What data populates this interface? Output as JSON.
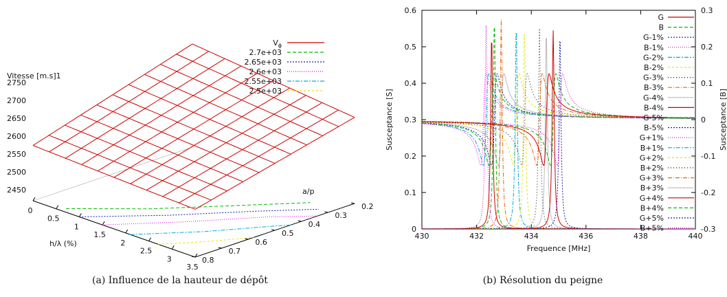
{
  "captions": {
    "a": "(a) Influence de la hauteur de dépôt",
    "b": "(b) Résolution du peigne"
  },
  "chart_data": [
    {
      "type": "surface3d",
      "ztitle": "Vitesse [m.s]1",
      "xlabel": "h/λ (%)",
      "ylabel": "a/p",
      "x_ticks": [
        "0",
        "0.5",
        "1",
        "1.5",
        "2",
        "2.5",
        "3",
        "3.5"
      ],
      "y_ticks": [
        "0.8",
        "0.7",
        "0.6",
        "0.5",
        "0.4",
        "0.3",
        "0.2"
      ],
      "z_ticks": [
        "2450",
        "2500",
        "2550",
        "2600",
        "2650",
        "2700",
        "2750"
      ],
      "xlim": [
        0,
        3.5
      ],
      "ylim": [
        0.8,
        0.2
      ],
      "zlim": [
        2450,
        2750
      ],
      "legend": [
        {
          "label": "V",
          "sub": "ϕ",
          "color": "#cc0000",
          "dash": ""
        },
        {
          "label": "2.7e+03",
          "color": "#00bb00",
          "dash": "5,3"
        },
        {
          "label": "2.65e+03",
          "color": "#1a1aaa",
          "dash": "2,2"
        },
        {
          "label": "2.6e+03",
          "color": "#dd00dd",
          "dash": "1,2"
        },
        {
          "label": "2.55e+03",
          "color": "#00aadd",
          "dash": "6,2,2,2"
        },
        {
          "label": "2.5e+03",
          "color": "#e6e600",
          "dash": "3,3"
        }
      ]
    },
    {
      "type": "line",
      "xlabel": "Frequence [MHz]",
      "ylabel": "Susceptance [S]",
      "y2label": "Susceptance [B]",
      "xlim": [
        430,
        440
      ],
      "ylim": [
        0,
        0.6
      ],
      "y2lim": [
        -0.3,
        0.3
      ],
      "x_ticks": [
        "430",
        "432",
        "434",
        "436",
        "438",
        "440"
      ],
      "y_ticks": [
        "0",
        "0.1",
        "0.2",
        "0.3",
        "0.4",
        "0.5",
        "0.6"
      ],
      "y2_ticks": [
        "-0.3",
        "-0.2",
        "-0.1",
        "0",
        "0.1",
        "0.2",
        "0.3"
      ],
      "peaks": [
        {
          "name": "G",
          "kind": "G",
          "f0": 434.8,
          "peak": 0.545,
          "color": "#cc0000",
          "dash": ""
        },
        {
          "name": "B",
          "kind": "B",
          "f0": 434.8,
          "peak": 0.5,
          "color": "#00bb00",
          "dash": "5,3"
        },
        {
          "name": "G-1%",
          "kind": "G",
          "f0": 435.05,
          "peak": 0.54,
          "color": "#1a1aaa",
          "dash": "2,2"
        },
        {
          "name": "B-1%",
          "kind": "B",
          "f0": 435.05,
          "peak": 0.5,
          "color": "#dd00dd",
          "dash": "1,2"
        },
        {
          "name": "G-2%",
          "kind": "G",
          "f0": 433.45,
          "peak": 0.565,
          "color": "#00aadd",
          "dash": "6,2,2,2"
        },
        {
          "name": "B-2%",
          "kind": "B",
          "f0": 433.45,
          "peak": 0.5,
          "color": "#e6e600",
          "dash": "3,3"
        },
        {
          "name": "G-3%",
          "kind": "G",
          "f0": 434.3,
          "peak": 0.55,
          "color": "#111111",
          "dash": "1,3"
        },
        {
          "name": "B-3%",
          "kind": "B",
          "f0": 434.3,
          "peak": 0.5,
          "color": "#ee6600",
          "dash": "6,2,1,2"
        },
        {
          "name": "G-4%",
          "kind": "G",
          "f0": 434.55,
          "peak": 0.548,
          "color": "#777777",
          "dash": "1,1"
        },
        {
          "name": "B-4%",
          "kind": "B",
          "f0": 434.55,
          "peak": 0.5,
          "color": "#cc0000",
          "dash": ""
        },
        {
          "name": "G-5%",
          "kind": "G",
          "f0": 432.65,
          "peak": 0.58,
          "color": "#00bb00",
          "dash": "5,3"
        },
        {
          "name": "B-5%",
          "kind": "B",
          "f0": 432.65,
          "peak": 0.5,
          "color": "#1a1aaa",
          "dash": "2,2"
        },
        {
          "name": "G+1%",
          "kind": "G",
          "f0": 432.35,
          "peak": 0.585,
          "color": "#dd00dd",
          "dash": "1,2"
        },
        {
          "name": "B+1%",
          "kind": "B",
          "f0": 432.35,
          "peak": 0.5,
          "color": "#00aadd",
          "dash": "6,2,2,2"
        },
        {
          "name": "G+2%",
          "kind": "G",
          "f0": 433.75,
          "peak": 0.56,
          "color": "#e6e600",
          "dash": "3,3"
        },
        {
          "name": "B+2%",
          "kind": "B",
          "f0": 433.75,
          "peak": 0.5,
          "color": "#111111",
          "dash": "1,3"
        },
        {
          "name": "G+3%",
          "kind": "G",
          "f0": 432.9,
          "peak": 0.575,
          "color": "#ee6600",
          "dash": "6,2,1,2"
        },
        {
          "name": "B+3%",
          "kind": "B",
          "f0": 432.9,
          "peak": 0.5,
          "color": "#777777",
          "dash": "1,1"
        },
        {
          "name": "G+4%",
          "kind": "G",
          "f0": 432.55,
          "peak": 0.535,
          "color": "#cc0000",
          "dash": ""
        },
        {
          "name": "B+4%",
          "kind": "B",
          "f0": 432.55,
          "peak": 0.5,
          "color": "#00bb00",
          "dash": "5,3"
        },
        {
          "name": "G+5%",
          "kind": "G",
          "f0": 432.25,
          "peak": 0.0,
          "color": "#1a1aaa",
          "dash": "2,2"
        },
        {
          "name": "B+5%",
          "kind": "B",
          "f0": 432.25,
          "peak": 0.5,
          "color": "#dd00dd",
          "dash": "1,2"
        }
      ]
    }
  ]
}
